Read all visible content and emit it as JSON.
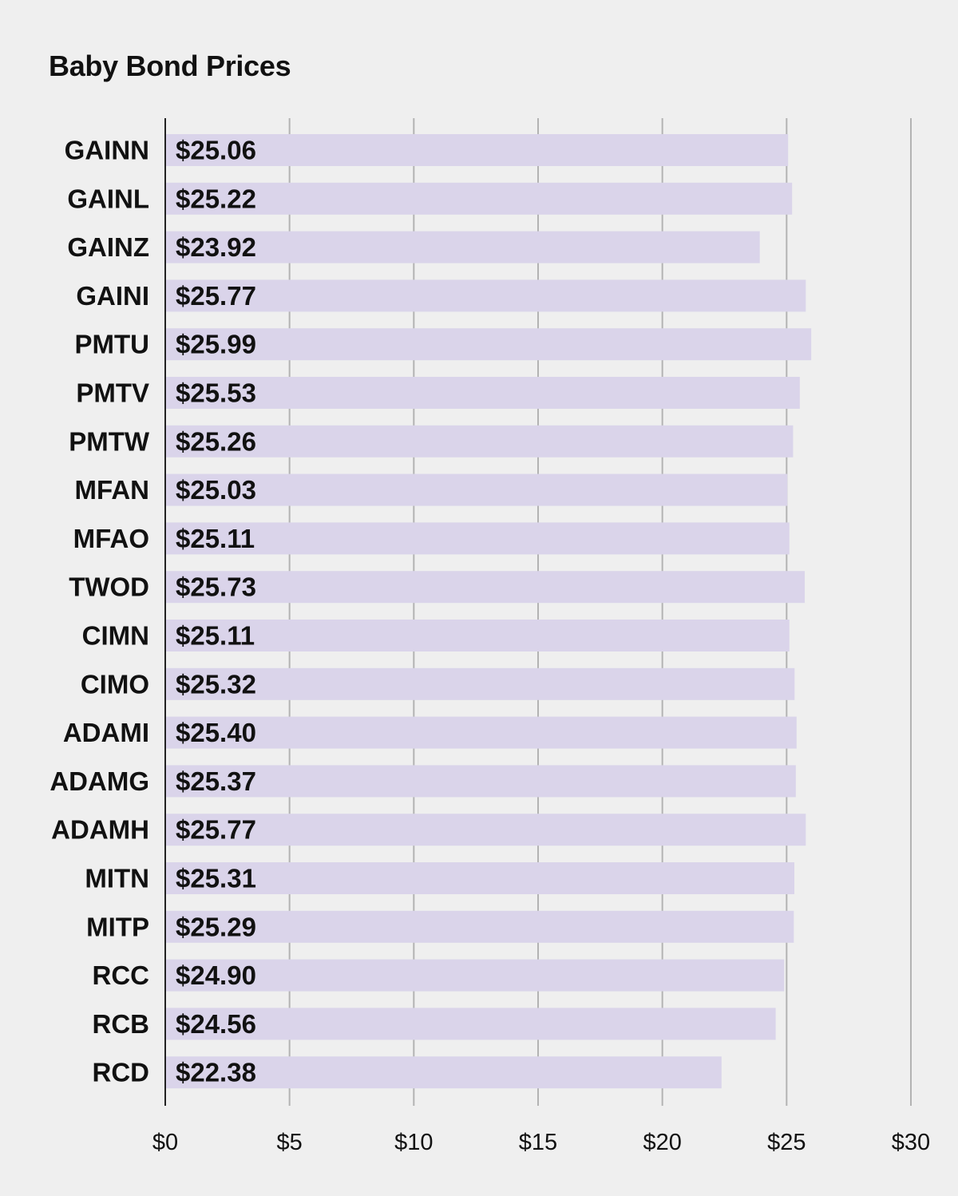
{
  "colors": {
    "background": "#efefef",
    "bar": "#dad4ea",
    "gridline": "#b3b3b3",
    "axis": "#222222",
    "text": "#111111"
  },
  "chart_data": {
    "type": "bar",
    "orientation": "horizontal",
    "title": "Baby Bond Prices",
    "xlabel": "",
    "ylabel": "",
    "xlim": [
      0,
      30
    ],
    "grid": true,
    "x_ticks": [
      0,
      5,
      10,
      15,
      20,
      25,
      30
    ],
    "x_tick_labels": [
      "$0",
      "$5",
      "$10",
      "$15",
      "$20",
      "$25",
      "$30"
    ],
    "categories": [
      "GAINN",
      "GAINL",
      "GAINZ",
      "GAINI",
      "PMTU",
      "PMTV",
      "PMTW",
      "MFAN",
      "MFAO",
      "TWOD",
      "CIMN",
      "CIMO",
      "ADAMI",
      "ADAMG",
      "ADAMH",
      "MITN",
      "MITP",
      "RCC",
      "RCB",
      "RCD"
    ],
    "values": [
      25.06,
      25.22,
      23.92,
      25.77,
      25.99,
      25.53,
      25.26,
      25.03,
      25.11,
      25.73,
      25.11,
      25.32,
      25.4,
      25.37,
      25.77,
      25.31,
      25.29,
      24.9,
      24.56,
      22.38
    ],
    "value_labels": [
      "$25.06",
      "$25.22",
      "$23.92",
      "$25.77",
      "$25.99",
      "$25.53",
      "$25.26",
      "$25.03",
      "$25.11",
      "$25.73",
      "$25.11",
      "$25.32",
      "$25.40",
      "$25.37",
      "$25.77",
      "$25.31",
      "$25.29",
      "$24.90",
      "$24.56",
      "$22.38"
    ]
  }
}
